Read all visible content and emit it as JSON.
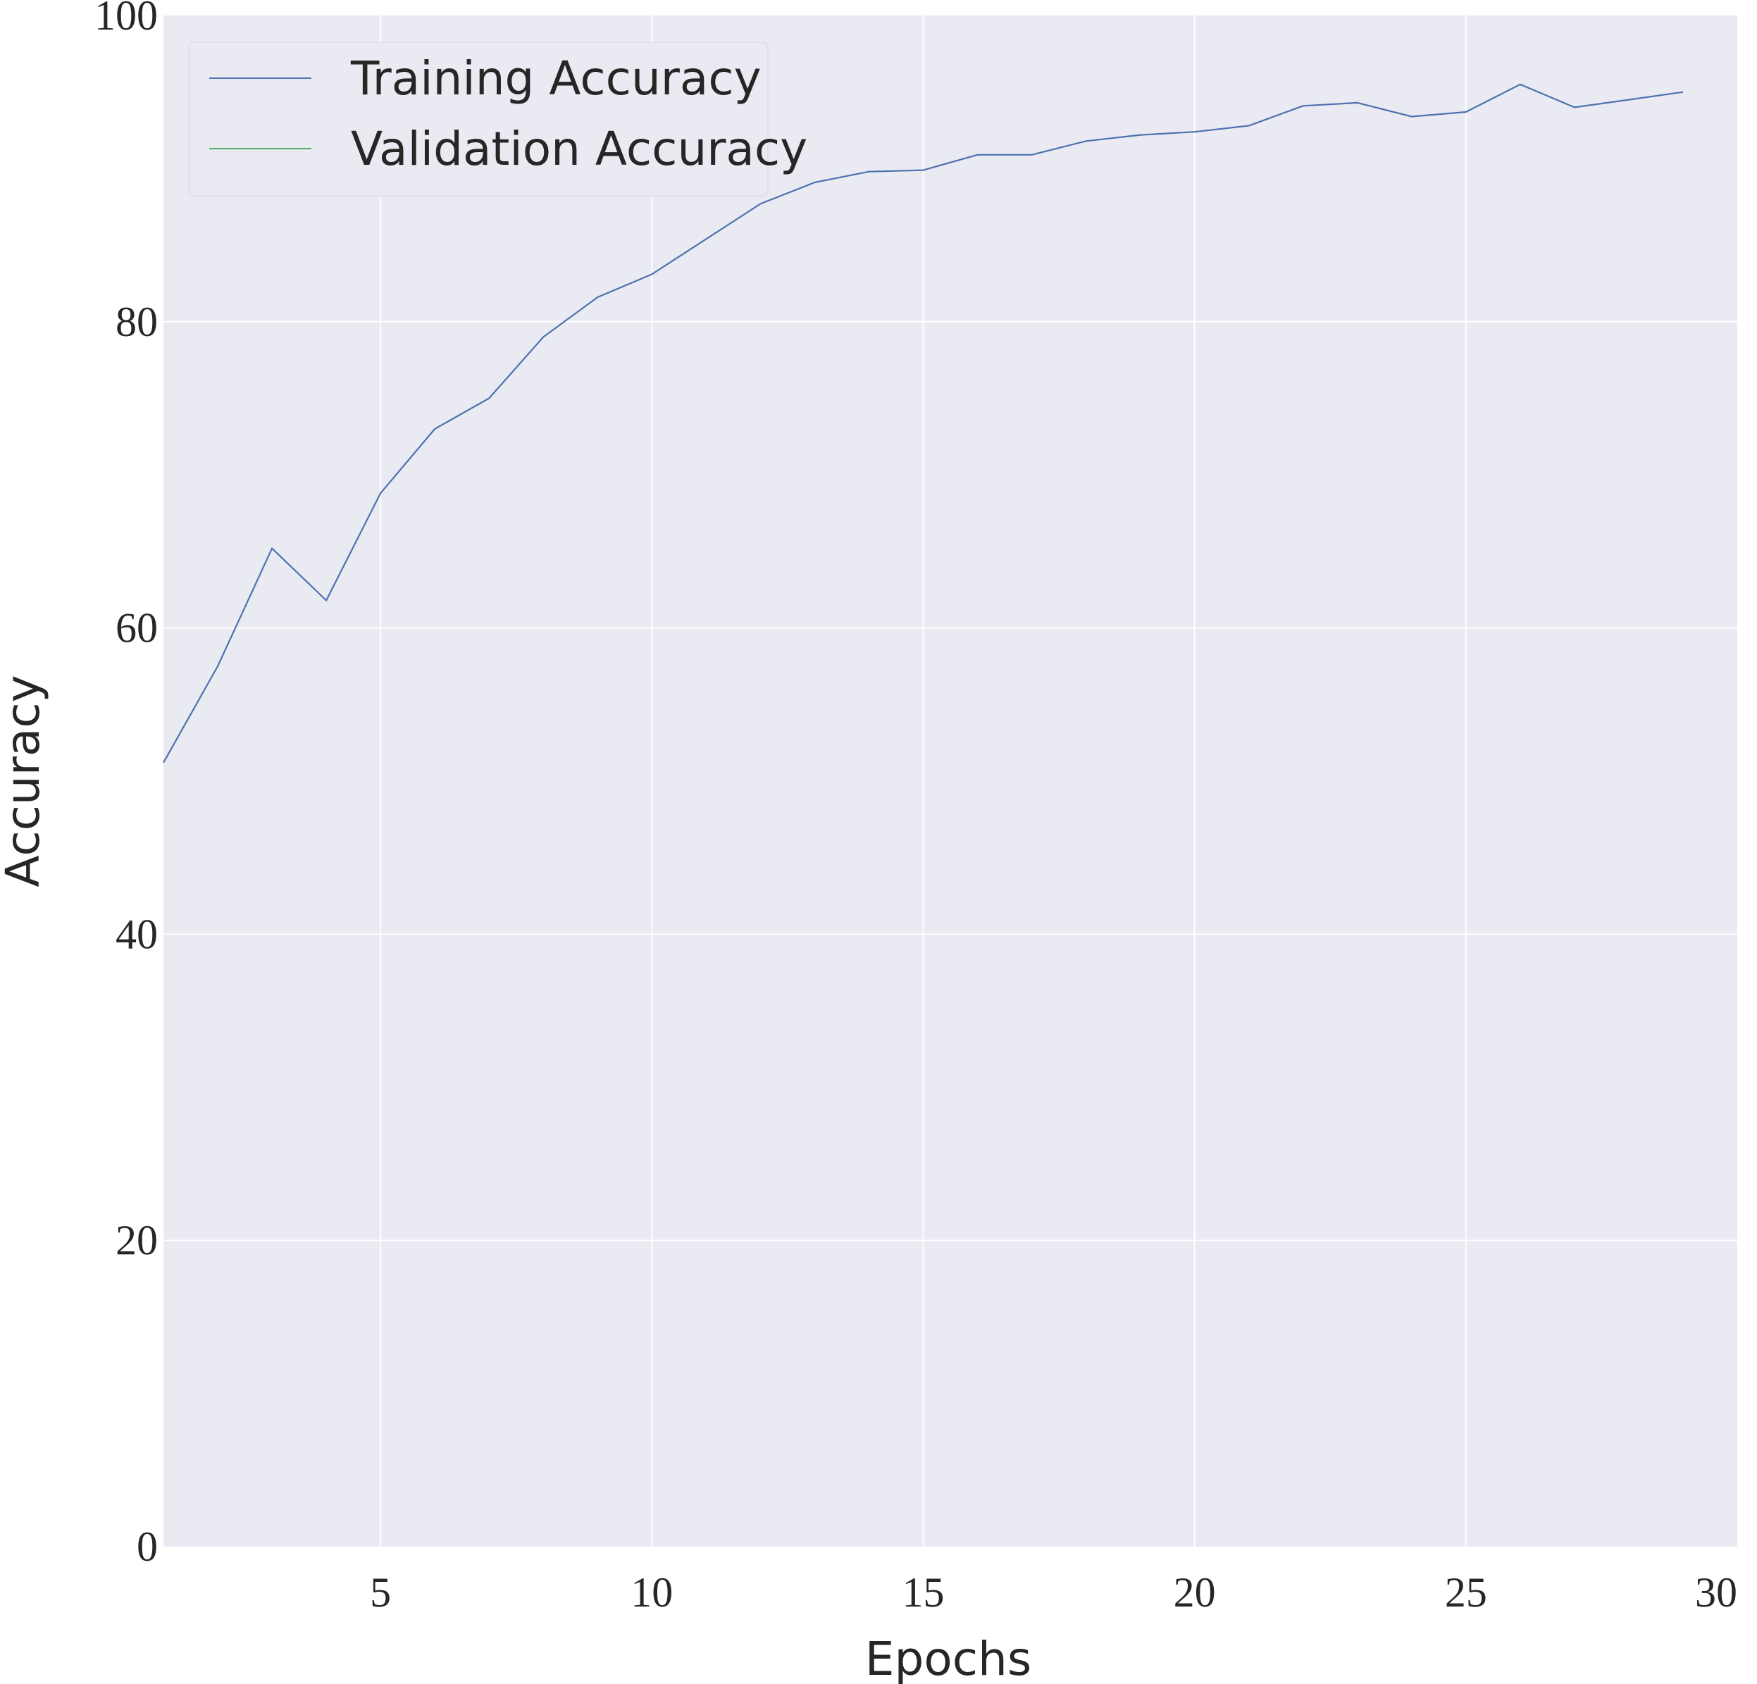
{
  "chart_data": {
    "type": "line",
    "title": "",
    "xlabel": "Epochs",
    "ylabel": "Accuracy",
    "xlim": [
      1,
      30
    ],
    "ylim": [
      0,
      100
    ],
    "xticks": [
      5,
      10,
      15,
      20,
      25,
      30
    ],
    "yticks": [
      0,
      20,
      40,
      60,
      80,
      100
    ],
    "grid": true,
    "legend_position": "top-left",
    "background_color": "#eaeaf2",
    "grid_color": "#ffffff",
    "series": [
      {
        "name": "Training Accuracy",
        "color": "#4c72b0",
        "x": [
          1,
          2,
          3,
          4,
          5,
          6,
          7,
          8,
          9,
          10,
          11,
          12,
          13,
          14,
          15,
          16,
          17,
          18,
          19,
          20,
          21,
          22,
          23,
          24,
          25,
          26,
          27,
          28,
          29
        ],
        "y": [
          51.2,
          57.5,
          65.2,
          61.8,
          68.8,
          73.0,
          75.0,
          79.0,
          81.6,
          83.1,
          85.4,
          87.7,
          89.1,
          89.8,
          89.9,
          90.9,
          90.9,
          91.8,
          92.2,
          92.4,
          92.8,
          94.1,
          94.3,
          93.4,
          93.7,
          95.5,
          94.0,
          94.5,
          95.0
        ]
      },
      {
        "name": "Validation Accuracy",
        "color": "#55a868",
        "x": [],
        "y": []
      }
    ]
  }
}
